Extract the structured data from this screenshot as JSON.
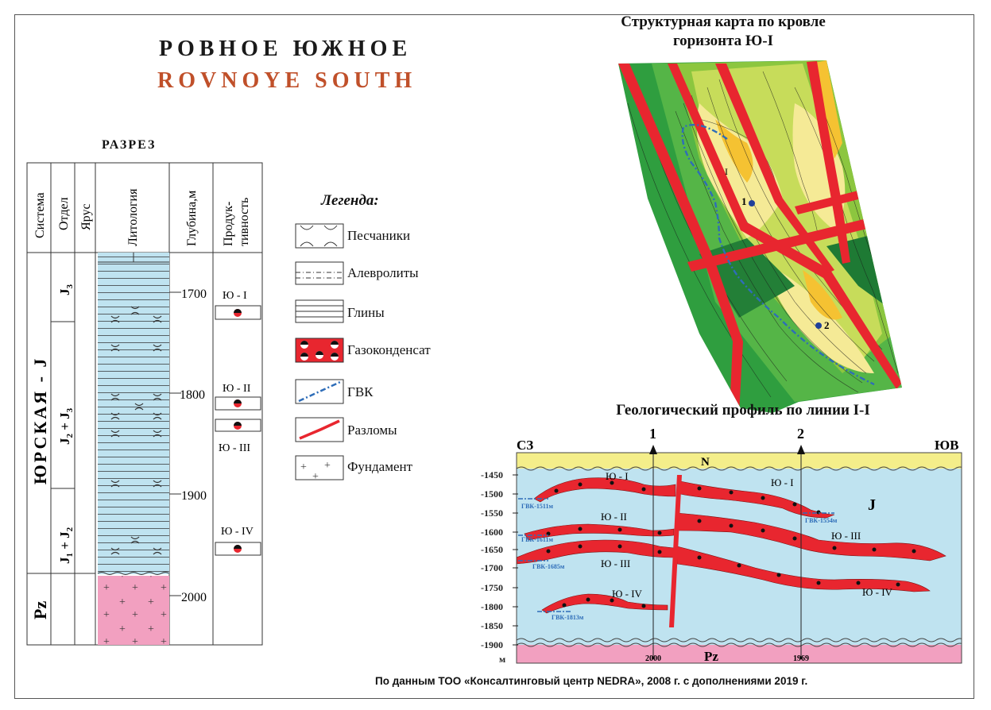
{
  "header": {
    "title_ru": "РОВНОЕ ЮЖНОЕ",
    "title_en": "ROVNOYE SOUTH"
  },
  "section": {
    "title": "РАЗРЕЗ",
    "columns": [
      "Система",
      "Отдел",
      "Ярус",
      "Литология",
      "Глубина,м",
      "Продук-",
      "тивность"
    ],
    "system_labels": [
      "ЮРСКАЯ - J",
      "Pz"
    ],
    "series_labels": [
      "J3",
      "J2 + J3",
      "J1 + J2"
    ],
    "depth_ticks": [
      "1700",
      "1800",
      "1900",
      "2000"
    ],
    "horizons": [
      "Ю - I",
      "Ю - II",
      "Ю - III",
      "Ю - IV"
    ]
  },
  "legend": {
    "title": "Легенда:",
    "items": [
      "Песчаники",
      "Алевролиты",
      "Глины",
      "Газоконденсат",
      "ГВК",
      "Разломы",
      "Фундамент"
    ]
  },
  "map": {
    "title_line1": "Структурная карта по кровле",
    "title_line2": "горизонта Ю-I",
    "well_labels": [
      "1",
      "2"
    ],
    "line_label": "I"
  },
  "profile": {
    "title": "Геологический профиль по линии I-I",
    "left_dir": "СЗ",
    "right_dir": "ЮВ",
    "wells": [
      "1",
      "2"
    ],
    "well_depths": [
      "2000",
      "1969"
    ],
    "y_ticks": [
      "-1450",
      "-1500",
      "-1550",
      "-1600",
      "-1650",
      "-1700",
      "-1750",
      "-1800",
      "-1850",
      "-1900"
    ],
    "y_unit": "м",
    "layer_top": "N",
    "layer_mid": "J",
    "layer_bottom": "Pz",
    "horizon_labels": [
      "Ю - I",
      "Ю - I",
      "Ю - II",
      "Ю - III",
      "Ю - III",
      "Ю - IV",
      "Ю - IV"
    ],
    "gwc_labels": [
      "ГВК-1511м",
      "ГВК-1554м",
      "ГВК-1611м",
      "ГВК-1685м",
      "ГВК-1813м"
    ]
  },
  "footer": {
    "source": "По данным ТОО «Консалтинговый центр NEDRA», 2008 г. с дополнениями 2019 г."
  },
  "colors": {
    "clay_blue": "#bfe3f0",
    "basement_pink": "#f2a0c0",
    "gas_red": "#e8262f",
    "gwc_blue": "#2e6db8",
    "title_orange": "#c0502a",
    "top_yellow": "#f4ee8a"
  }
}
